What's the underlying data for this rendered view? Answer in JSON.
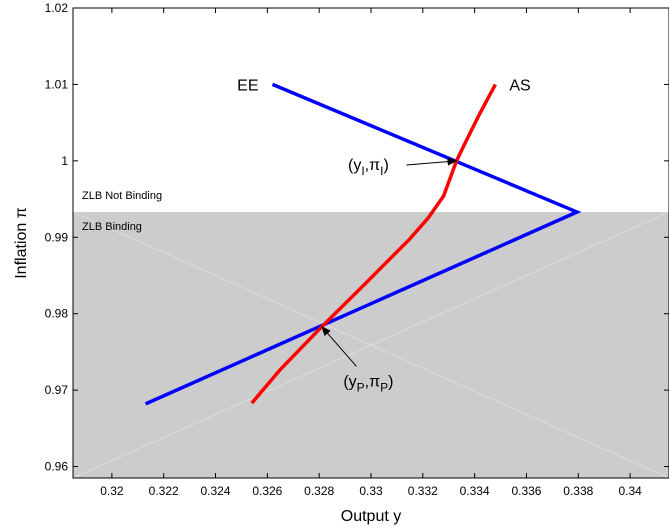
{
  "chart_data": {
    "type": "line",
    "xlabel": "Output y",
    "ylabel": "Inflation π",
    "xlim": [
      0.3185,
      0.3415
    ],
    "ylim": [
      0.9585,
      1.02
    ],
    "xticks": [
      0.32,
      0.322,
      0.324,
      0.326,
      0.328,
      0.33,
      0.332,
      0.334,
      0.336,
      0.338,
      0.34
    ],
    "xtick_labels": [
      "0.32",
      "0.322",
      "0.324",
      "0.326",
      "0.328",
      "0.33",
      "0.332",
      "0.334",
      "0.336",
      "0.338",
      "0.34"
    ],
    "yticks": [
      0.96,
      0.97,
      0.98,
      0.99,
      1.0,
      1.01,
      1.02
    ],
    "ytick_labels": [
      "0.96",
      "0.97",
      "0.98",
      "0.99",
      "1",
      "1.01",
      "1.02"
    ],
    "grid": false,
    "zlb_threshold": 0.9933,
    "regions": {
      "upper_label": "ZLB Not Binding",
      "lower_label": "ZLB Binding",
      "lower_color": "#cccccc"
    },
    "series": [
      {
        "name": "EE",
        "color": "#0000ff",
        "points": [
          [
            0.3262,
            1.01
          ],
          [
            0.33795,
            0.9933
          ],
          [
            0.3213,
            0.9682
          ]
        ]
      },
      {
        "name": "AS",
        "color": "#ff0000",
        "points": [
          [
            0.3254,
            0.9683
          ],
          [
            0.3265,
            0.9727
          ],
          [
            0.3281,
            0.9783
          ],
          [
            0.3298,
            0.984
          ],
          [
            0.3315,
            0.9898
          ],
          [
            0.3322,
            0.9925
          ],
          [
            0.3328,
            0.9954
          ],
          [
            0.3333,
            1.0
          ],
          [
            0.3337,
            1.0028
          ],
          [
            0.3342,
            1.0062
          ],
          [
            0.3348,
            1.01
          ]
        ]
      }
    ],
    "annotations": {
      "intended": {
        "base": "(y",
        "sub1": "I",
        "mid": ",π",
        "sub2": "I",
        "end": ")",
        "point": [
          0.3333,
          1.0
        ],
        "text_anchor": [
          0.3299,
          0.9988
        ]
      },
      "pessimistic": {
        "base": "(y",
        "sub1": "P",
        "mid": ",π",
        "sub2": "P",
        "end": ")",
        "point": [
          0.3281,
          0.9783
        ],
        "text_anchor": [
          0.3299,
          0.9705
        ]
      }
    }
  }
}
